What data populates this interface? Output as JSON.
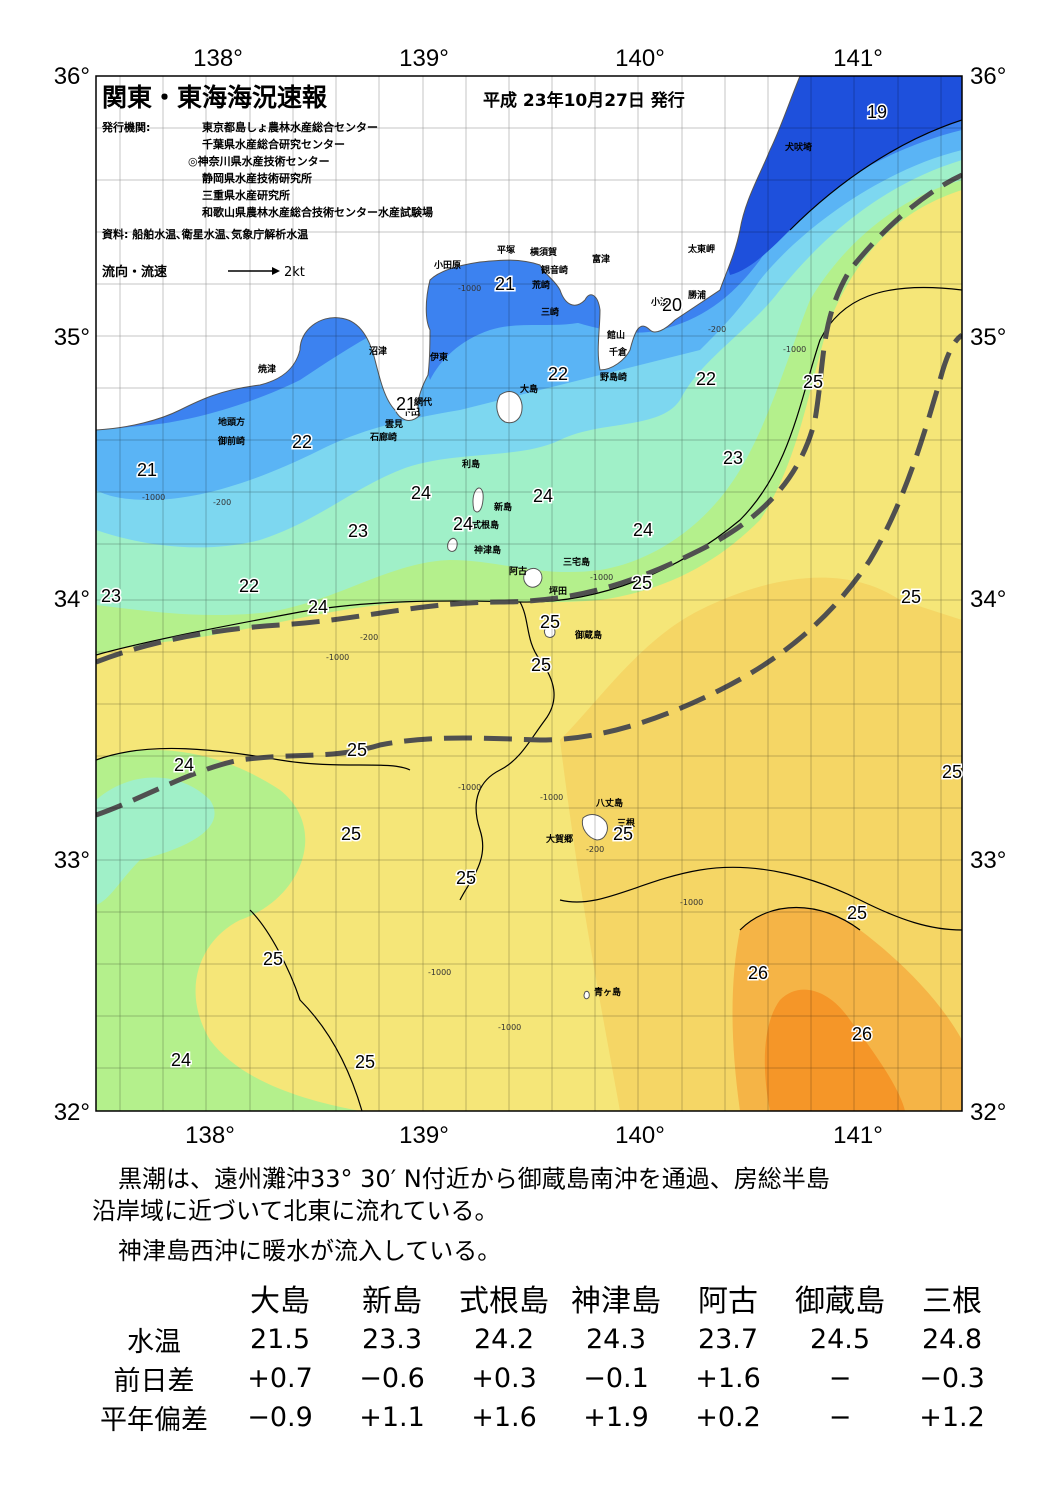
{
  "title": "関東・東海海況速報",
  "issue_date": "平成 23年10月27日 発行",
  "publisher_label": "発行機関:",
  "publishers": [
    "東京都島しょ農林水産総合センター",
    "千葉県水産総合研究センター",
    "◎神奈川県水産技術センター",
    "静岡県水産技術研究所",
    "三重県水産研究所",
    "和歌山県農林水産総合技術センター水産試験場"
  ],
  "source": "資料: 船舶水温､衛星水温､気象庁解析水温",
  "legend_flow": "流向・流速",
  "legend_speed": "2kt",
  "axes": {
    "lon_labels": [
      "138°",
      "139°",
      "140°",
      "141°"
    ],
    "lat_labels": [
      "36°",
      "35°",
      "34°",
      "33°",
      "32°"
    ]
  },
  "place_labels": [
    {
      "name": "犬吠埼"
    },
    {
      "name": "太東岬"
    },
    {
      "name": "勝浦"
    },
    {
      "name": "小湊"
    },
    {
      "name": "富津"
    },
    {
      "name": "横須賀"
    },
    {
      "name": "観音崎"
    },
    {
      "name": "荒崎"
    },
    {
      "name": "三崎"
    },
    {
      "name": "平塚"
    },
    {
      "name": "小田原"
    },
    {
      "name": "館山"
    },
    {
      "name": "千倉"
    },
    {
      "name": "野島崎"
    },
    {
      "name": "沼津"
    },
    {
      "name": "伊東"
    },
    {
      "name": "焼津"
    },
    {
      "name": "網代"
    },
    {
      "name": "下田"
    },
    {
      "name": "雲見"
    },
    {
      "name": "石廊崎"
    },
    {
      "name": "地頭方"
    },
    {
      "name": "御前崎"
    },
    {
      "name": "大島"
    },
    {
      "name": "利島"
    },
    {
      "name": "新島"
    },
    {
      "name": "式根島"
    },
    {
      "name": "神津島"
    },
    {
      "name": "三宅島"
    },
    {
      "name": "阿古"
    },
    {
      "name": "坪田"
    },
    {
      "name": "御蔵島"
    },
    {
      "name": "八丈島"
    },
    {
      "name": "三根"
    },
    {
      "name": "大賀郷"
    },
    {
      "name": "青ヶ島"
    }
  ],
  "isotherm_labels": [
    "19",
    "20",
    "21",
    "21",
    "21",
    "22",
    "22",
    "22",
    "22",
    "23",
    "23",
    "23",
    "24",
    "24",
    "24",
    "24",
    "24",
    "24",
    "25",
    "25",
    "25",
    "25",
    "25",
    "25",
    "25",
    "25",
    "25",
    "25",
    "25",
    "25",
    "26",
    "26"
  ],
  "depth_labels": [
    "-200",
    "-1000"
  ],
  "colors": {
    "t19": "#1e50dc",
    "t20": "#3c82f0",
    "t21": "#5ab4f5",
    "t22": "#7dd7f0",
    "t23": "#a0f0c8",
    "t24": "#b4f08c",
    "t25": "#f5e678",
    "t26": "#f5b446",
    "t27": "#f59628",
    "land": "#ffffff",
    "kuroshio_axis": "#505050"
  },
  "description": [
    "黒潮は、遠州灘沖33° 30′ N付近から御蔵島南沖を通過、房総半島",
    "沿岸域に近づいて北東に流れている。",
    "神津島西沖に暖水が流入している。"
  ],
  "table": {
    "stations": [
      "大島",
      "新島",
      "式根島",
      "神津島",
      "阿古",
      "御蔵島",
      "三根"
    ],
    "rows": [
      {
        "label": "水温",
        "values": [
          "21.5",
          "23.3",
          "24.2",
          "24.3",
          "23.7",
          "24.5",
          "24.8"
        ]
      },
      {
        "label": "前日差",
        "values": [
          "+0.7",
          "−0.6",
          "+0.3",
          "−0.1",
          "+1.6",
          "−",
          "−0.3"
        ]
      },
      {
        "label": "平年偏差",
        "values": [
          "−0.9",
          "+1.1",
          "+1.6",
          "+1.9",
          "+0.2",
          "−",
          "+1.2"
        ]
      }
    ]
  }
}
